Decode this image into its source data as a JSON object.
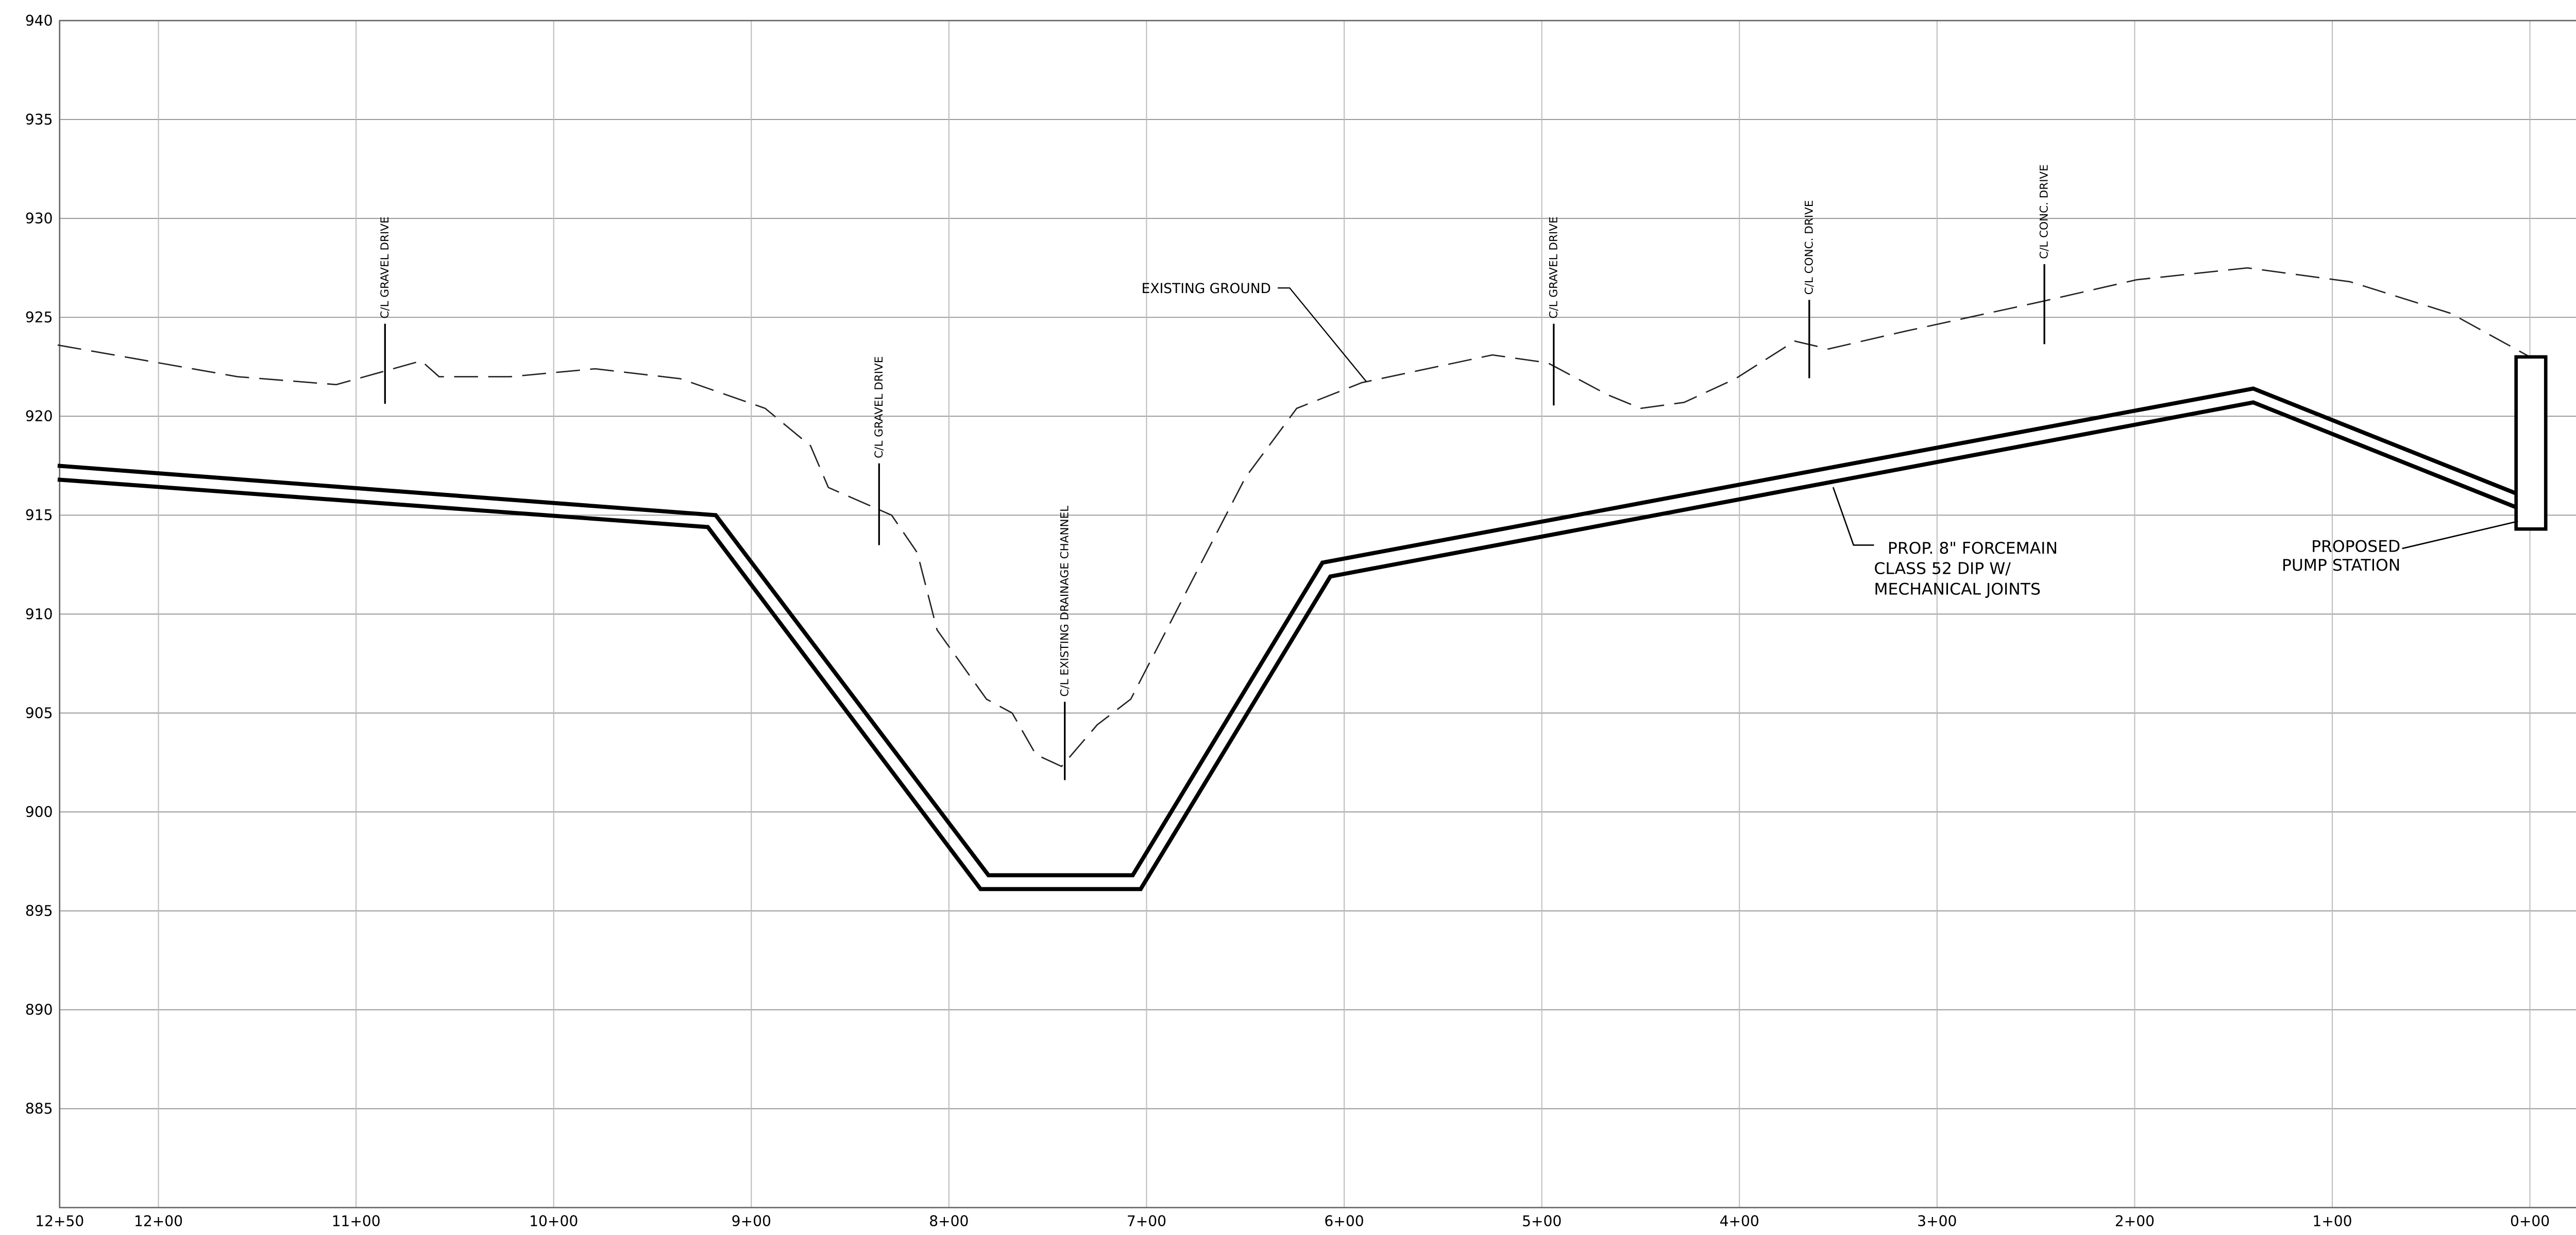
{
  "chart_data": {
    "type": "line",
    "xlim": [
      1250,
      -50
    ],
    "ylim": [
      880,
      940
    ],
    "xticks": [
      {
        "value": 1250,
        "label": "12+50"
      },
      {
        "value": 1200,
        "label": "12+00"
      },
      {
        "value": 1100,
        "label": "11+00"
      },
      {
        "value": 1000,
        "label": "10+00"
      },
      {
        "value": 900,
        "label": "9+00"
      },
      {
        "value": 800,
        "label": "8+00"
      },
      {
        "value": 700,
        "label": "7+00"
      },
      {
        "value": 600,
        "label": "6+00"
      },
      {
        "value": 500,
        "label": "5+00"
      },
      {
        "value": 400,
        "label": "4+00"
      },
      {
        "value": 300,
        "label": "3+00"
      },
      {
        "value": 200,
        "label": "2+00"
      },
      {
        "value": 100,
        "label": "1+00"
      },
      {
        "value": 0,
        "label": "0+00"
      }
    ],
    "yticks": [
      885,
      890,
      895,
      900,
      905,
      910,
      915,
      920,
      925,
      930,
      935,
      940
    ],
    "grid": true,
    "series": [
      {
        "color": "#222",
        "dashed": true,
        "x": [
          1251,
          1160,
          1110,
          1067,
          1058,
          1022,
          979,
          936,
          893,
          870,
          861,
          829,
          816,
          806,
          781,
          768,
          756,
          743,
          725,
          708,
          650,
          624,
          591,
          525,
          497,
          467,
          450,
          428,
          402,
          372,
          355,
          316,
          247,
          199,
          143,
          91,
          40,
          0
        ],
        "values": [
          923.6,
          922.0,
          921.6,
          922.8,
          922.0,
          922.0,
          922.4,
          921.9,
          920.4,
          918.5,
          916.4,
          915.0,
          913.1,
          909.2,
          905.7,
          905.0,
          902.9,
          902.3,
          904.4,
          905.7,
          916.9,
          920.4,
          921.7,
          923.1,
          922.7,
          921.1,
          920.4,
          920.7,
          921.9,
          923.8,
          923.4,
          924.3,
          925.8,
          926.9,
          927.5,
          926.8,
          925.2,
          923.0
        ]
      },
      {
        "color": "#000",
        "dashed": false,
        "x": [
          1251,
          918,
          780,
          707,
          611,
          140,
          7
        ],
        "values": [
          917.5,
          915.0,
          896.8,
          896.8,
          912.6,
          921.4,
          916.1
        ]
      },
      {
        "color": "#000",
        "dashed": false,
        "x": [
          1251,
          922,
          784,
          703,
          607,
          140,
          7
        ],
        "values": [
          916.8,
          914.4,
          896.1,
          896.1,
          911.9,
          920.7,
          915.4
        ]
      }
    ],
    "pump_station": {
      "x": [
        7,
        -8
      ],
      "y": [
        923.0,
        914.3
      ]
    },
    "callouts": [
      "C/L GRAVEL DRIVE",
      "C/L GRAVEL DRIVE",
      "C/L EXISTING DRAINAGE CHANNEL",
      "C/L GRAVEL DRIVE",
      "C/L CONC. DRIVE",
      "C/L CONC. DRIVE"
    ],
    "ground_label": "EXISTING GROUND",
    "pipe_label": [
      "PROP. 8\" FORCEMAIN",
      "CLASS 52 DIP W/",
      "MECHANICAL JOINTS"
    ],
    "station_label": [
      "PROPOSED",
      "PUMP STATION"
    ]
  }
}
